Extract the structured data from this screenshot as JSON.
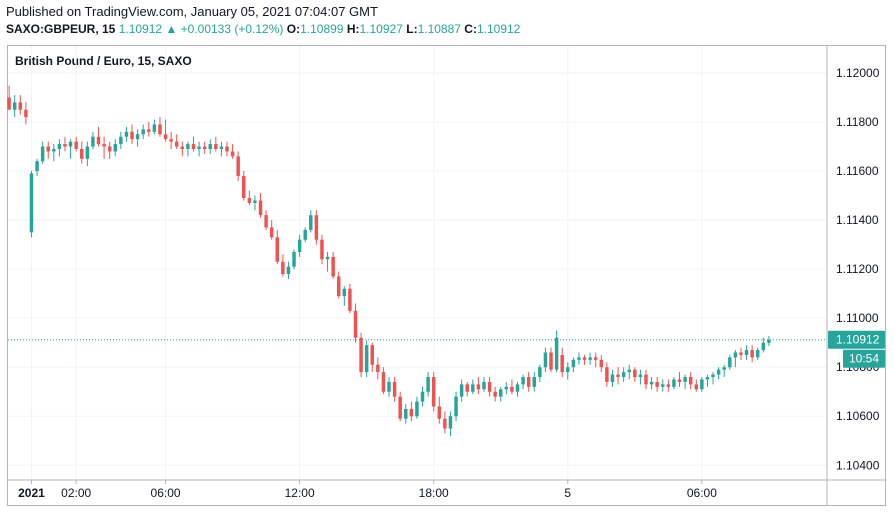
{
  "header": {
    "published": "Published on TradingView.com, January 05, 2021 07:04:07 GMT",
    "symbol": "SAXO:GBPEUR, 15",
    "last": "1.10912",
    "change": "▲ +0.00133 (+0.12%)",
    "o_label": "O:",
    "o_value": "1.10899",
    "h_label": "H:",
    "h_value": "1.10927",
    "l_label": "L:",
    "l_value": "1.10887",
    "c_label": "C:",
    "c_value": "1.10912"
  },
  "colors": {
    "up": "#26a69a",
    "down": "#ef5350",
    "grid": "#f0f3fa",
    "axis": "#b2b5be"
  },
  "chart_data": {
    "type": "candlestick",
    "title": "British Pound / Euro, 15, SAXO",
    "price_labels": [
      "1.12000",
      "1.11800",
      "1.11600",
      "1.11400",
      "1.11200",
      "1.11000",
      "1.10800",
      "1.10600",
      "1.10400"
    ],
    "price_ticks": [
      1.12,
      1.118,
      1.116,
      1.114,
      1.112,
      1.11,
      1.108,
      1.106,
      1.104
    ],
    "time_labels": [
      "2021",
      "02:00",
      "06:00",
      "12:00",
      "18:00",
      "5",
      "06:00"
    ],
    "time_hours": [
      0,
      2,
      6,
      12,
      18,
      24,
      30
    ],
    "time_label_bold": [
      true,
      false,
      false,
      false,
      false,
      false,
      false
    ],
    "last_price_label": "1.10912",
    "last_price": 1.10912,
    "countdown_label": "10:54",
    "interval_minutes": 15,
    "hours_per_candle": 0.25,
    "first_candle_hour": -1.0,
    "ylim": [
      1.1034,
      1.1211
    ],
    "xlim_hours": [
      -1.05,
      35.6
    ],
    "candles": [
      [
        1.119,
        1.11948,
        1.1185,
        1.1185
      ],
      [
        1.1185,
        1.1191,
        1.1182,
        1.1188
      ],
      [
        1.1188,
        1.1191,
        1.1183,
        1.1185
      ],
      [
        1.1185,
        1.1188,
        1.1179,
        1.1182
      ],
      [
        1.1135,
        1.116,
        1.1133,
        1.1159
      ],
      [
        1.116,
        1.1165,
        1.1158,
        1.1164
      ],
      [
        1.1164,
        1.1172,
        1.1163,
        1.117
      ],
      [
        1.117,
        1.1172,
        1.1165,
        1.1168
      ],
      [
        1.1168,
        1.1171,
        1.1164,
        1.1169
      ],
      [
        1.1169,
        1.1173,
        1.1166,
        1.1171
      ],
      [
        1.1171,
        1.1174,
        1.1168,
        1.117
      ],
      [
        1.117,
        1.1173,
        1.1165,
        1.1172
      ],
      [
        1.1172,
        1.1174,
        1.1168,
        1.1169
      ],
      [
        1.1169,
        1.1172,
        1.1163,
        1.1165
      ],
      [
        1.1165,
        1.1172,
        1.1162,
        1.117
      ],
      [
        1.117,
        1.1176,
        1.1169,
        1.1174
      ],
      [
        1.1174,
        1.1178,
        1.117,
        1.1171
      ],
      [
        1.1171,
        1.1174,
        1.1165,
        1.117
      ],
      [
        1.117,
        1.1172,
        1.1165,
        1.1168
      ],
      [
        1.1168,
        1.1173,
        1.1166,
        1.1171
      ],
      [
        1.1171,
        1.1176,
        1.1169,
        1.1174
      ],
      [
        1.1174,
        1.1178,
        1.1172,
        1.1176
      ],
      [
        1.1176,
        1.1179,
        1.1171,
        1.1173
      ],
      [
        1.1173,
        1.1177,
        1.117,
        1.1175
      ],
      [
        1.1175,
        1.1179,
        1.1173,
        1.1177
      ],
      [
        1.1177,
        1.118,
        1.1174,
        1.1176
      ],
      [
        1.1176,
        1.1181,
        1.1175,
        1.1179
      ],
      [
        1.1179,
        1.1182,
        1.1174,
        1.1175
      ],
      [
        1.1175,
        1.1181,
        1.1172,
        1.1173
      ],
      [
        1.1173,
        1.1176,
        1.1169,
        1.1172
      ],
      [
        1.1172,
        1.1175,
        1.1169,
        1.117
      ],
      [
        1.117,
        1.1172,
        1.1166,
        1.1169
      ],
      [
        1.1169,
        1.1172,
        1.1166,
        1.1171
      ],
      [
        1.1171,
        1.1174,
        1.1168,
        1.1169
      ],
      [
        1.1169,
        1.1172,
        1.1166,
        1.117
      ],
      [
        1.117,
        1.1172,
        1.1167,
        1.1169
      ],
      [
        1.1169,
        1.1173,
        1.1167,
        1.1171
      ],
      [
        1.1171,
        1.1174,
        1.1168,
        1.1169
      ],
      [
        1.1169,
        1.1172,
        1.1166,
        1.117
      ],
      [
        1.117,
        1.1172,
        1.1166,
        1.1168
      ],
      [
        1.1168,
        1.1171,
        1.1165,
        1.1166
      ],
      [
        1.1166,
        1.1168,
        1.1156,
        1.1158
      ],
      [
        1.1158,
        1.116,
        1.1148,
        1.1149
      ],
      [
        1.1149,
        1.1152,
        1.1146,
        1.1147
      ],
      [
        1.1147,
        1.115,
        1.1144,
        1.1148
      ],
      [
        1.1148,
        1.1151,
        1.1141,
        1.1142
      ],
      [
        1.1142,
        1.1144,
        1.1136,
        1.1137
      ],
      [
        1.1137,
        1.114,
        1.1132,
        1.1133
      ],
      [
        1.1133,
        1.1136,
        1.1122,
        1.1123
      ],
      [
        1.1123,
        1.1126,
        1.1117,
        1.1118
      ],
      [
        1.1118,
        1.1123,
        1.1116,
        1.1121
      ],
      [
        1.1121,
        1.1128,
        1.112,
        1.1127
      ],
      [
        1.1127,
        1.1134,
        1.1125,
        1.1132
      ],
      [
        1.1132,
        1.1137,
        1.1131,
        1.1136
      ],
      [
        1.1136,
        1.1144,
        1.1135,
        1.1142
      ],
      [
        1.1142,
        1.1144,
        1.113,
        1.1132
      ],
      [
        1.1132,
        1.1134,
        1.1122,
        1.1124
      ],
      [
        1.1124,
        1.1127,
        1.1119,
        1.1125
      ],
      [
        1.1125,
        1.1127,
        1.1116,
        1.1117
      ],
      [
        1.1117,
        1.1119,
        1.1108,
        1.1109
      ],
      [
        1.1109,
        1.1113,
        1.1105,
        1.1112
      ],
      [
        1.1112,
        1.1114,
        1.1102,
        1.1103
      ],
      [
        1.1103,
        1.1106,
        1.109,
        1.1092
      ],
      [
        1.1092,
        1.1094,
        1.1076,
        1.1078
      ],
      [
        1.1078,
        1.1091,
        1.1076,
        1.1089
      ],
      [
        1.1089,
        1.109,
        1.1078,
        1.1081
      ],
      [
        1.1081,
        1.1084,
        1.1075,
        1.1078
      ],
      [
        1.1078,
        1.108,
        1.1069,
        1.107
      ],
      [
        1.107,
        1.1076,
        1.1068,
        1.1074
      ],
      [
        1.1074,
        1.1076,
        1.1066,
        1.1068
      ],
      [
        1.1068,
        1.107,
        1.1058,
        1.1059
      ],
      [
        1.1059,
        1.1065,
        1.1057,
        1.1063
      ],
      [
        1.1063,
        1.1066,
        1.1058,
        1.106
      ],
      [
        1.106,
        1.1068,
        1.1059,
        1.1066
      ],
      [
        1.1066,
        1.1072,
        1.1064,
        1.107
      ],
      [
        1.107,
        1.1078,
        1.1068,
        1.1076
      ],
      [
        1.1076,
        1.1078,
        1.1062,
        1.1064
      ],
      [
        1.1064,
        1.1068,
        1.1057,
        1.1059
      ],
      [
        1.1059,
        1.1062,
        1.1053,
        1.1055
      ],
      [
        1.1055,
        1.1062,
        1.1052,
        1.106
      ],
      [
        1.106,
        1.107,
        1.1058,
        1.1068
      ],
      [
        1.1068,
        1.1075,
        1.1066,
        1.1073
      ],
      [
        1.1073,
        1.1074,
        1.1068,
        1.107
      ],
      [
        1.107,
        1.1075,
        1.1069,
        1.1073
      ],
      [
        1.1073,
        1.1076,
        1.1069,
        1.1071
      ],
      [
        1.1071,
        1.1076,
        1.107,
        1.1074
      ],
      [
        1.1074,
        1.1076,
        1.1068,
        1.107
      ],
      [
        1.107,
        1.1072,
        1.1066,
        1.1068
      ],
      [
        1.1068,
        1.1072,
        1.1066,
        1.1071
      ],
      [
        1.1071,
        1.1074,
        1.1069,
        1.1072
      ],
      [
        1.1072,
        1.1075,
        1.1069,
        1.107
      ],
      [
        1.107,
        1.1074,
        1.1068,
        1.1073
      ],
      [
        1.1073,
        1.1077,
        1.1071,
        1.1076
      ],
      [
        1.1076,
        1.1078,
        1.107,
        1.1072
      ],
      [
        1.1072,
        1.1078,
        1.107,
        1.1076
      ],
      [
        1.1076,
        1.1081,
        1.1074,
        1.108
      ],
      [
        1.108,
        1.1088,
        1.1078,
        1.1086
      ],
      [
        1.1086,
        1.1088,
        1.1078,
        1.1079
      ],
      [
        1.1079,
        1.1095,
        1.1078,
        1.1092
      ],
      [
        1.1085,
        1.1088,
        1.1076,
        1.1078
      ],
      [
        1.1078,
        1.1082,
        1.1075,
        1.108
      ],
      [
        1.108,
        1.1084,
        1.1078,
        1.1083
      ],
      [
        1.1083,
        1.1086,
        1.1081,
        1.1084
      ],
      [
        1.1084,
        1.1085,
        1.1081,
        1.1083
      ],
      [
        1.1083,
        1.1086,
        1.1081,
        1.1084
      ],
      [
        1.1084,
        1.1086,
        1.108,
        1.1083
      ],
      [
        1.1083,
        1.1085,
        1.1078,
        1.108
      ],
      [
        1.108,
        1.1082,
        1.1072,
        1.1074
      ],
      [
        1.1074,
        1.1079,
        1.1072,
        1.1077
      ],
      [
        1.1077,
        1.108,
        1.1073,
        1.1076
      ],
      [
        1.1076,
        1.108,
        1.1074,
        1.1078
      ],
      [
        1.1078,
        1.1081,
        1.1075,
        1.1079
      ],
      [
        1.1079,
        1.108,
        1.1074,
        1.1076
      ],
      [
        1.1076,
        1.1079,
        1.1073,
        1.1077
      ],
      [
        1.1077,
        1.1079,
        1.1071,
        1.1073
      ],
      [
        1.1073,
        1.1076,
        1.1071,
        1.1074
      ],
      [
        1.1074,
        1.1076,
        1.107,
        1.1072
      ],
      [
        1.1072,
        1.1075,
        1.107,
        1.1073
      ],
      [
        1.1073,
        1.1075,
        1.107,
        1.1072
      ],
      [
        1.1072,
        1.1076,
        1.1071,
        1.1075
      ],
      [
        1.1075,
        1.1078,
        1.1072,
        1.1074
      ],
      [
        1.1074,
        1.1077,
        1.1071,
        1.1076
      ],
      [
        1.1076,
        1.1078,
        1.1071,
        1.1073
      ],
      [
        1.1073,
        1.1075,
        1.107,
        1.1071
      ],
      [
        1.1071,
        1.1076,
        1.107,
        1.1075
      ],
      [
        1.1075,
        1.1077,
        1.1072,
        1.1076
      ],
      [
        1.1076,
        1.1078,
        1.1073,
        1.1077
      ],
      [
        1.1077,
        1.108,
        1.1075,
        1.1079
      ],
      [
        1.1079,
        1.1081,
        1.1076,
        1.108
      ],
      [
        1.108,
        1.1085,
        1.1079,
        1.1084
      ],
      [
        1.1084,
        1.1087,
        1.108,
        1.1086
      ],
      [
        1.1086,
        1.1088,
        1.1083,
        1.1085
      ],
      [
        1.1085,
        1.1089,
        1.1083,
        1.1087
      ],
      [
        1.1087,
        1.1089,
        1.1082,
        1.1084
      ],
      [
        1.1084,
        1.1088,
        1.1083,
        1.1087
      ],
      [
        1.1087,
        1.1092,
        1.1086,
        1.109
      ],
      [
        1.10899,
        1.10927,
        1.10887,
        1.10912
      ]
    ]
  }
}
